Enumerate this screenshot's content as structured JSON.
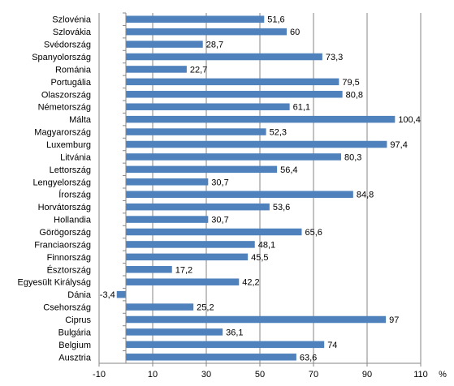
{
  "chart_data": {
    "type": "bar",
    "orientation": "horizontal",
    "categories": [
      "Szlovénia",
      "Szlovákia",
      "Svédország",
      "Spanyolország",
      "Románia",
      "Portugália",
      "Olaszország",
      "Németország",
      "Málta",
      "Magyarország",
      "Luxemburg",
      "Litvánia",
      "Lettország",
      "Lengyelország",
      "Írország",
      "Horvátország",
      "Hollandia",
      "Görögország",
      "Franciaország",
      "Finnország",
      "Észtország",
      "Egyesült Királyság",
      "Dánia",
      "Csehország",
      "Ciprus",
      "Bulgária",
      "Belgium",
      "Ausztria"
    ],
    "values": [
      51.6,
      60,
      28.7,
      73.3,
      22.7,
      79.5,
      80.8,
      61.1,
      100.4,
      52.3,
      97.4,
      80.3,
      56.4,
      30.7,
      84.8,
      53.6,
      30.7,
      65.6,
      48.1,
      45.5,
      17.2,
      42.2,
      -3.4,
      25.2,
      97,
      36.1,
      74,
      63.6
    ],
    "value_labels": [
      "51,6",
      "60",
      "28,7",
      "73,3",
      "22,7",
      "79,5",
      "80,8",
      "61,1",
      "100,4",
      "52,3",
      "97,4",
      "80,3",
      "56,4",
      "30,7",
      "84,8",
      "53,6",
      "30,7",
      "65,6",
      "48,1",
      "45,5",
      "17,2",
      "42,2",
      "-3,4",
      "25,2",
      "97",
      "36,1",
      "74",
      "63,6"
    ],
    "x_ticks": [
      "-10",
      "10",
      "30",
      "50",
      "70",
      "90",
      "110"
    ],
    "x_tick_values": [
      -10,
      10,
      30,
      50,
      70,
      90,
      110
    ],
    "xlim": [
      -10,
      110
    ],
    "x_unit": "%",
    "grid": "vertical",
    "legend": "none",
    "colors": {
      "bar": "#4f81bd",
      "grid": "#868686",
      "axis": "#868686"
    }
  }
}
